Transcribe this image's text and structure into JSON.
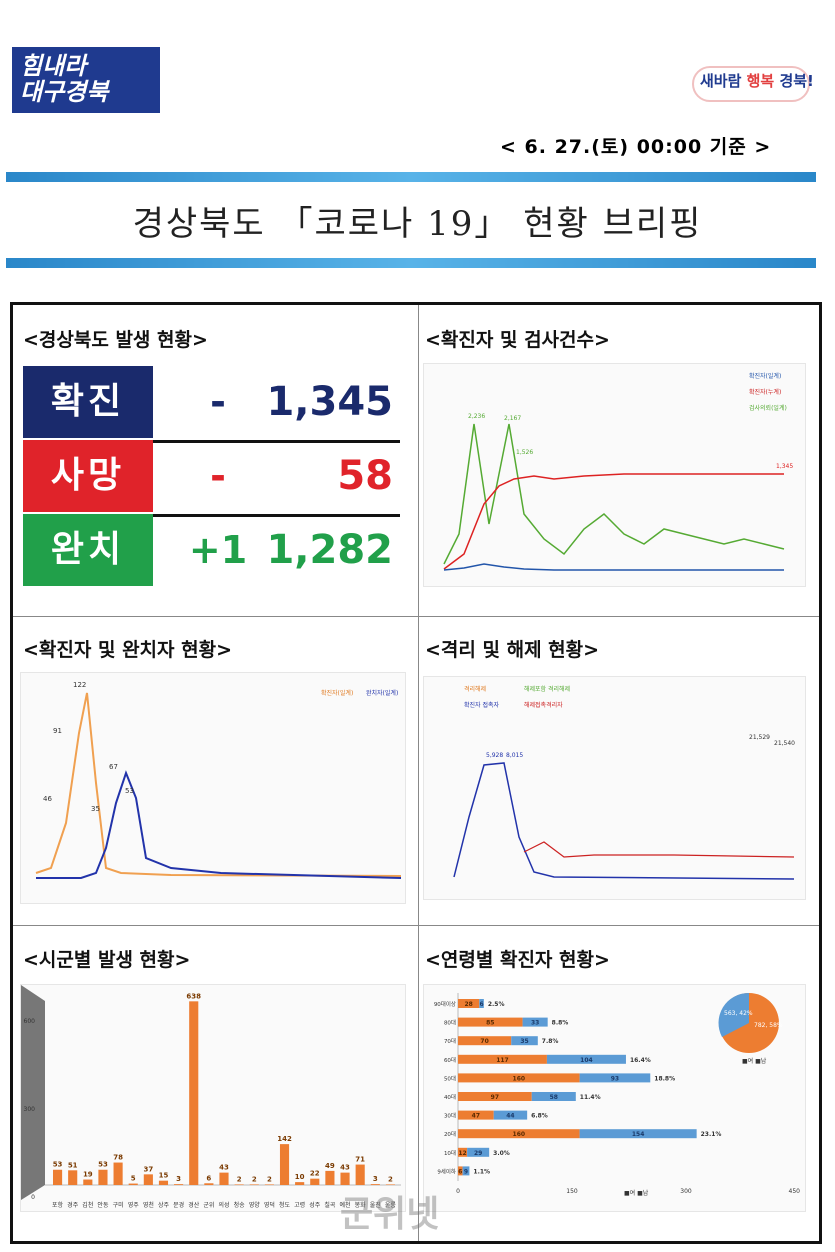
{
  "header": {
    "logo_left_line1": "힘내라",
    "logo_left_line2": "대구경북",
    "logo_right_a": "새바람 ",
    "logo_right_b": "행복",
    "logo_right_c": " 경북!",
    "date": "< 6. 27.(토) 00:00 기준 >",
    "title": "경상북도 「코로나 19」 현황 브리핑"
  },
  "sections": {
    "status": "<경상북도 발생 현황>",
    "tests": "<확진자 및 검사건수>",
    "recovery": "<확진자 및 완치자 현황>",
    "isolation": "<격리 및 해제 현황>",
    "region": "<시군별 발생 현황>",
    "age": "<연령별 확진자 현황>"
  },
  "stats": [
    {
      "label": "확진",
      "change": "-",
      "value": "1,345",
      "bg": "#1a2a6c",
      "color": "#1a2a6c",
      "chgcolor": "#1a2a6c"
    },
    {
      "label": "사망",
      "change": "-",
      "value": "58",
      "bg": "#e0232a",
      "color": "#e0232a",
      "chgcolor": "#e0232a"
    },
    {
      "label": "완치",
      "change": "+1",
      "value": "1,282",
      "bg": "#21a04a",
      "color": "#21a04a",
      "chgcolor": "#21a04a"
    }
  ],
  "charts": {
    "tests_legend": [
      "확진자(일계)",
      "확진자(누계)",
      "검사의뢰(일계)"
    ],
    "tests_peak_labels": [
      "2,236",
      "2,167",
      "1,526",
      "1,345"
    ],
    "recovery_legend": [
      "확진자(일계)",
      "완치자(일계)"
    ],
    "recovery_peak_labels": [
      "122",
      "91",
      "67",
      "53",
      "46",
      "35"
    ],
    "isolation_legend": [
      "격리해제",
      "해제포함 격리해제",
      "확진자 접촉자",
      "해제접촉격리자"
    ],
    "isolation_peak_labels": [
      "5,928",
      "8,015",
      "21,529",
      "21,540"
    ],
    "region_labels": [
      "포항",
      "경주",
      "김천",
      "안동",
      "구미",
      "영주",
      "영천",
      "상주",
      "문경",
      "경산",
      "군위",
      "의성",
      "청송",
      "영양",
      "영덕",
      "청도",
      "고령",
      "성주",
      "칠곡",
      "예천",
      "봉화",
      "울진",
      "울릉"
    ],
    "region_values": [
      53,
      51,
      19,
      53,
      78,
      5,
      37,
      15,
      3,
      638,
      6,
      43,
      2,
      2,
      2,
      142,
      10,
      22,
      49,
      43,
      71,
      3,
      2
    ],
    "region_yticks": [
      "600",
      "300",
      "0"
    ],
    "age_labels": [
      "90대이상",
      "80대",
      "70대",
      "60대",
      "50대",
      "40대",
      "30대",
      "20대",
      "10대",
      "9세이하"
    ],
    "age_male": [
      6,
      33,
      35,
      104,
      93,
      58,
      44,
      154,
      29,
      9
    ],
    "age_female": [
      28,
      85,
      70,
      117,
      160,
      97,
      47,
      160,
      12,
      6
    ],
    "age_pct": [
      "2.5%",
      "8.8%",
      "7.8%",
      "16.4%",
      "18.8%",
      "11.4%",
      "6.8%",
      "23.1%",
      "3.0%",
      "1.1%"
    ],
    "age_xticks": [
      "0",
      "150",
      "300",
      "450"
    ],
    "age_pie": {
      "male": "563, 42%",
      "female": "782, 58%"
    },
    "age_legend": "■여 ■남"
  },
  "watermark": "군위넷"
}
